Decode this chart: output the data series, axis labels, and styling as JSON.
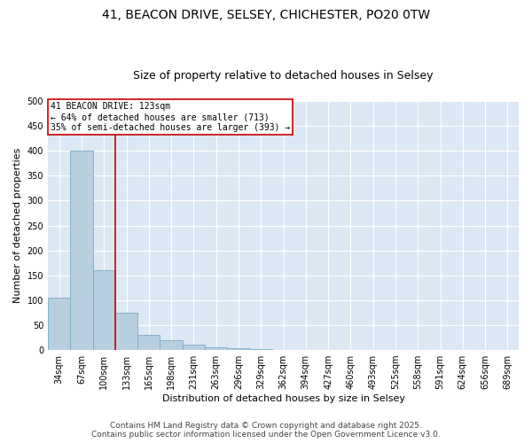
{
  "title_line1": "41, BEACON DRIVE, SELSEY, CHICHESTER, PO20 0TW",
  "title_line2": "Size of property relative to detached houses in Selsey",
  "xlabel": "Distribution of detached houses by size in Selsey",
  "ylabel": "Number of detached properties",
  "categories": [
    "34sqm",
    "67sqm",
    "100sqm",
    "133sqm",
    "165sqm",
    "198sqm",
    "231sqm",
    "263sqm",
    "296sqm",
    "329sqm",
    "362sqm",
    "394sqm",
    "427sqm",
    "460sqm",
    "493sqm",
    "525sqm",
    "558sqm",
    "591sqm",
    "624sqm",
    "656sqm",
    "689sqm"
  ],
  "values": [
    105,
    400,
    160,
    75,
    30,
    20,
    10,
    5,
    4,
    2,
    0,
    0,
    0,
    1,
    0,
    0,
    0,
    0,
    0,
    0,
    1
  ],
  "bar_color": "#b8cfe0",
  "bar_edge_color": "#7aaac8",
  "annotation_label": "41 BEACON DRIVE: 123sqm",
  "annotation_line2": "← 64% of detached houses are smaller (713)",
  "annotation_line3": "35% of semi-detached houses are larger (393) →",
  "ylim": [
    0,
    500
  ],
  "yticks": [
    0,
    50,
    100,
    150,
    200,
    250,
    300,
    350,
    400,
    450,
    500
  ],
  "background_color": "#dce8f4",
  "grid_color": "white",
  "footer_line1": "Contains HM Land Registry data © Crown copyright and database right 2025.",
  "footer_line2": "Contains public sector information licensed under the Open Government Licence v3.0.",
  "title1_fontsize": 10,
  "title2_fontsize": 9,
  "axis_label_fontsize": 8,
  "tick_fontsize": 7,
  "annotation_fontsize": 7,
  "footer_fontsize": 6.5,
  "red_line_index": 2.5
}
